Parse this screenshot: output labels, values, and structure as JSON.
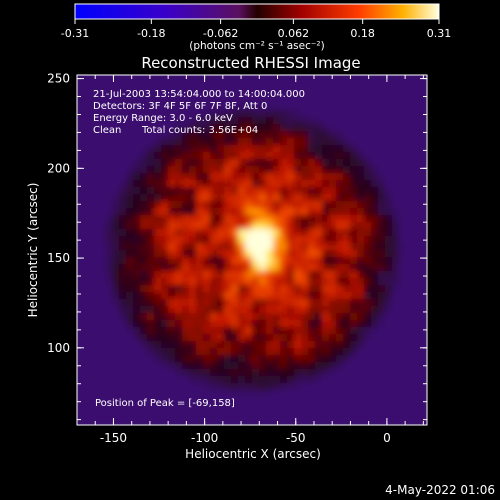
{
  "chart_data": {
    "type": "heatmap",
    "title": "Reconstructed RHESSI Image",
    "xlabel": "Heliocentric X (arcsec)",
    "ylabel": "Heliocentric Y (arcsec)",
    "xlim": [
      -170,
      22
    ],
    "ylim": [
      57,
      252
    ],
    "x_ticks": [
      "-150",
      "-100",
      "-50",
      "0"
    ],
    "x_tick_values": [
      -150,
      -100,
      -50,
      0
    ],
    "y_ticks": [
      "100",
      "150",
      "200",
      "250"
    ],
    "y_tick_values": [
      100,
      150,
      200,
      250
    ],
    "colorbar": {
      "ticks": [
        "-0.31",
        "-0.18",
        "-0.062",
        "0.062",
        "0.18",
        "0.31"
      ],
      "tick_values": [
        -0.31,
        -0.18,
        -0.062,
        0.062,
        0.18,
        0.31
      ],
      "range": [
        -0.31,
        0.31
      ],
      "units": "(photons cm⁻² s⁻¹ asec⁻²)"
    },
    "annotations": [
      "21-Jul-2003 13:54:04.000 to 14:00:04.000",
      "Detectors: 3F 4F 5F 6F 7F 8F, Att 0",
      "Energy Range: 3.0 - 6.0 keV",
      "Clean",
      "Total counts: 3.56E+04",
      "Position of Peak = [-69,158]"
    ],
    "peak": {
      "x": -69,
      "y": 158,
      "value": 0.31
    }
  },
  "footer": {
    "date": "4-May-2022 01:06"
  }
}
